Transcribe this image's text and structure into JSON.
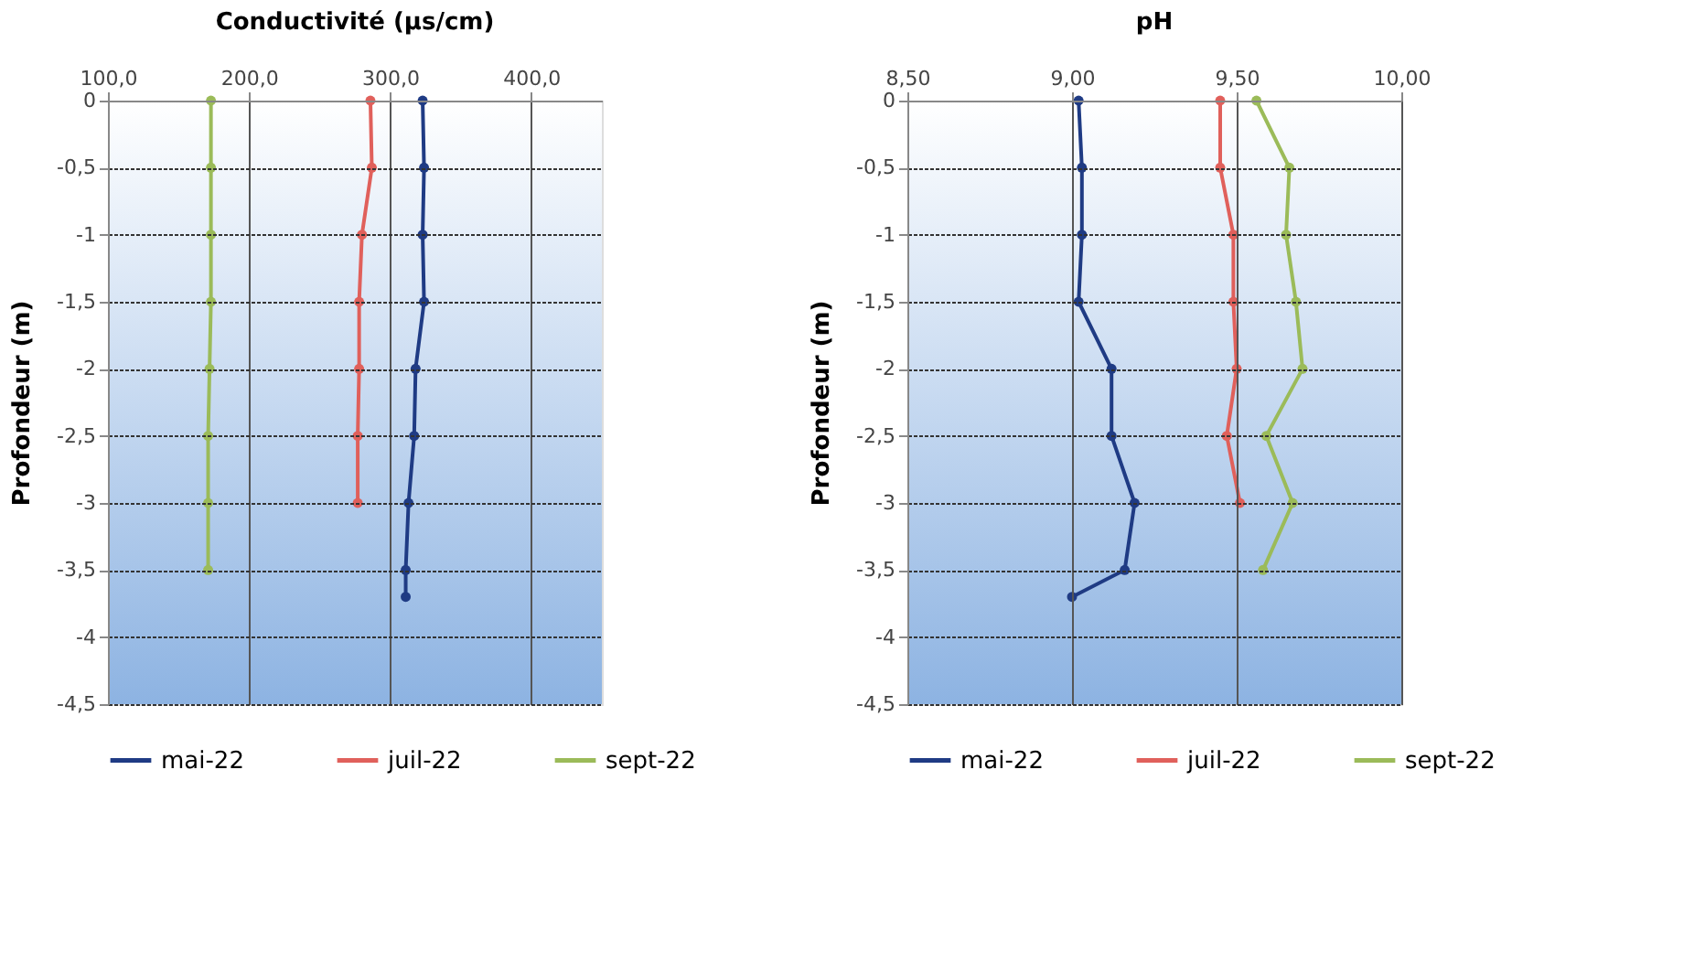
{
  "chart_data": [
    {
      "type": "line",
      "title": "Conductivité (µs/cm)",
      "ylabel": "Profondeur (m)",
      "xlim": [
        100,
        450
      ],
      "xticks": [
        {
          "value": 100,
          "label": "100,0"
        },
        {
          "value": 200,
          "label": "200,0"
        },
        {
          "value": 300,
          "label": "300,0"
        },
        {
          "value": 400,
          "label": "400,0"
        }
      ],
      "ylim": [
        -4.5,
        0
      ],
      "yticks": [
        0,
        {
          "value": -0.5,
          "label": "-0,5"
        },
        -1,
        {
          "value": -1.5,
          "label": "-1,5"
        },
        -2,
        {
          "value": -2.5,
          "label": "-2,5"
        },
        -3,
        {
          "value": -3.5,
          "label": "-3,5"
        },
        -4,
        {
          "value": -4.5,
          "label": "-4,5"
        }
      ],
      "grid": true,
      "legend": "bottom",
      "marker": "circle",
      "line_style": "solid",
      "series": [
        {
          "name": "mai-22",
          "color": "#1f3b84",
          "x": [
            323,
            324,
            323,
            324,
            318,
            317,
            313,
            311,
            311
          ],
          "values": [
            0,
            -0.5,
            -1,
            -1.5,
            -2,
            -2.5,
            -3,
            -3.5,
            -3.7
          ]
        },
        {
          "name": "juil-22",
          "color": "#e0605b",
          "x": [
            286,
            287,
            280,
            278,
            278,
            277,
            277
          ],
          "values": [
            0,
            -0.5,
            -1,
            -1.5,
            -2,
            -2.5,
            -3
          ]
        },
        {
          "name": "sept-22",
          "color": "#9bbb59",
          "x": [
            173,
            173,
            173,
            173,
            172,
            171,
            171,
            171
          ],
          "values": [
            0,
            -0.5,
            -1,
            -1.5,
            -2,
            -2.5,
            -3,
            -3.5
          ]
        }
      ]
    },
    {
      "type": "line",
      "title": "pH",
      "ylabel": "Profondeur (m)",
      "xlim": [
        8.5,
        10
      ],
      "xticks": [
        {
          "value": 8.5,
          "label": "8,50"
        },
        {
          "value": 9,
          "label": "9,00"
        },
        {
          "value": 9.5,
          "label": "9,50"
        },
        {
          "value": 10,
          "label": "10,00"
        }
      ],
      "ylim": [
        -4.5,
        0
      ],
      "yticks": [
        0,
        {
          "value": -0.5,
          "label": "-0,5"
        },
        -1,
        {
          "value": -1.5,
          "label": "-1,5"
        },
        -2,
        {
          "value": -2.5,
          "label": "-2,5"
        },
        -3,
        {
          "value": -3.5,
          "label": "-3,5"
        },
        -4,
        {
          "value": -4.5,
          "label": "-4,5"
        }
      ],
      "grid": true,
      "legend": "bottom",
      "marker": "circle",
      "line_style": "solid",
      "series": [
        {
          "name": "mai-22",
          "color": "#1f3b84",
          "x": [
            9.02,
            9.03,
            9.03,
            9.02,
            9.12,
            9.12,
            9.19,
            9.16,
            9.0
          ],
          "values": [
            0,
            -0.5,
            -1,
            -1.5,
            -2,
            -2.5,
            -3,
            -3.5,
            -3.7
          ]
        },
        {
          "name": "juil-22",
          "color": "#e0605b",
          "x": [
            9.45,
            9.45,
            9.49,
            9.49,
            9.5,
            9.47,
            9.51
          ],
          "values": [
            0,
            -0.5,
            -1,
            -1.5,
            -2,
            -2.5,
            -3
          ]
        },
        {
          "name": "sept-22",
          "color": "#9bbb59",
          "x": [
            9.56,
            9.66,
            9.65,
            9.68,
            9.7,
            9.59,
            9.67,
            9.58
          ],
          "values": [
            0,
            -0.5,
            -1,
            -1.5,
            -2,
            -2.5,
            -3,
            -3.5
          ]
        }
      ]
    }
  ]
}
